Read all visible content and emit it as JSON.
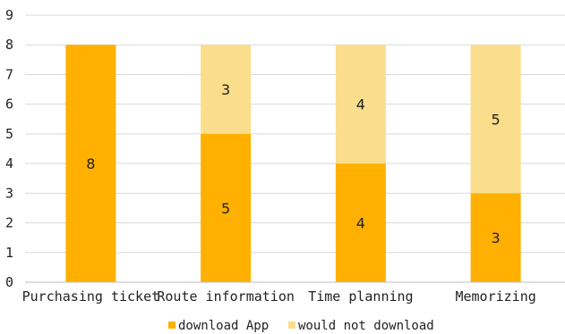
{
  "chart_data": {
    "type": "bar",
    "stacked": true,
    "categories": [
      "Purchasing ticket",
      "Route information",
      "Time planning",
      "Memorizing"
    ],
    "series": [
      {
        "name": "download App",
        "values": [
          8,
          5,
          4,
          3
        ],
        "color": "#FFB000"
      },
      {
        "name": "would not download",
        "values": [
          0,
          3,
          4,
          5
        ],
        "color": "#FADE8C"
      }
    ],
    "ylim": [
      0,
      9
    ],
    "yticks": [
      "0",
      "1",
      "2",
      "3",
      "4",
      "5",
      "6",
      "7",
      "8",
      "9"
    ],
    "grid": true,
    "legend_position": "bottom",
    "data_labels": true
  }
}
